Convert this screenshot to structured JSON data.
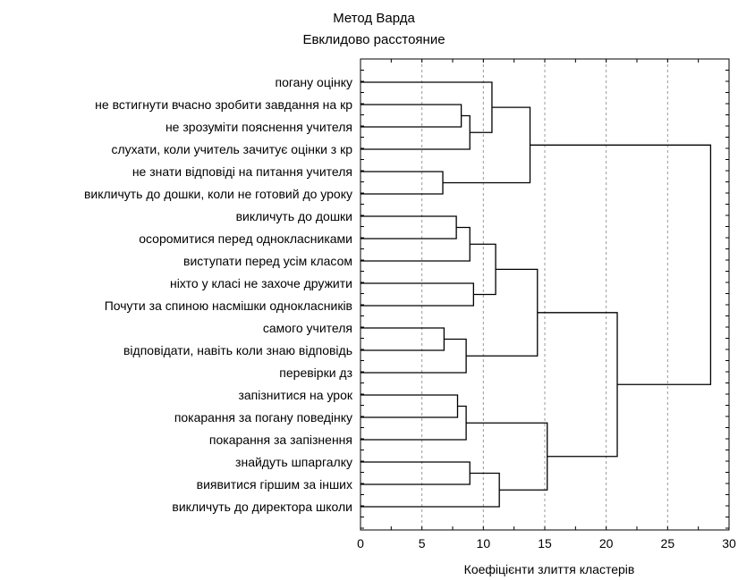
{
  "chart_data": {
    "type": "dendrogram",
    "title": "Метод Варда",
    "subtitle": "Евклидово расстояние",
    "xlabel": "Коефіцієнти злиття кластерів",
    "xlim": [
      0,
      30
    ],
    "xticks": [
      0,
      5,
      10,
      15,
      20,
      25,
      30
    ],
    "grid": "vertical",
    "leaves": [
      "погану оцінку",
      "не встигнути вчасно зробити завдання на кр",
      "не зрозуміти пояснення учителя",
      "слухати, коли учитель зачитує оцінки з кр",
      "не знати відповіді на питання учителя",
      "викличуть до дошки, коли не готовий до уроку",
      "викличуть до дошки",
      "осоромитися перед однокласниками",
      "виступати перед усім класом",
      "ніхто у класі не захоче дружити",
      "Почути за спиною насмішки однокласників",
      "самого учителя",
      "відповідати, навіть коли знаю відповідь",
      "перевірки дз",
      "запізнитися на урок",
      "покарання за погану поведінку",
      "покарання за запізнення",
      "знайдуть шпаргалку",
      "виявитися гіршим за інших",
      "викличуть до директора школи"
    ],
    "merges": [
      {
        "id": "A",
        "left": "L1",
        "right": "L2",
        "height": 8.2
      },
      {
        "id": "B",
        "left": "A",
        "right": "L3",
        "height": 8.9
      },
      {
        "id": "C",
        "left": "L0",
        "right": "B",
        "height": 10.7
      },
      {
        "id": "D",
        "left": "L4",
        "right": "L5",
        "height": 6.7
      },
      {
        "id": "E",
        "left": "C",
        "right": "D",
        "height": 13.8
      },
      {
        "id": "F",
        "left": "L6",
        "right": "L7",
        "height": 7.8
      },
      {
        "id": "G",
        "left": "F",
        "right": "L8",
        "height": 8.9
      },
      {
        "id": "H",
        "left": "L9",
        "right": "L10",
        "height": 9.2
      },
      {
        "id": "I",
        "left": "G",
        "right": "H",
        "height": 11.0
      },
      {
        "id": "J",
        "left": "L11",
        "right": "L12",
        "height": 6.8
      },
      {
        "id": "K",
        "left": "J",
        "right": "L13",
        "height": 8.6
      },
      {
        "id": "M",
        "left": "I",
        "right": "K",
        "height": 14.4
      },
      {
        "id": "N",
        "left": "L14",
        "right": "L15",
        "height": 7.9
      },
      {
        "id": "O",
        "left": "N",
        "right": "L16",
        "height": 8.6
      },
      {
        "id": "P",
        "left": "L17",
        "right": "L18",
        "height": 8.9
      },
      {
        "id": "Q",
        "left": "P",
        "right": "L19",
        "height": 11.3
      },
      {
        "id": "R",
        "left": "O",
        "right": "Q",
        "height": 15.2
      },
      {
        "id": "S",
        "left": "M",
        "right": "R",
        "height": 20.9
      },
      {
        "id": "T",
        "left": "E",
        "right": "S",
        "height": 28.5
      }
    ]
  }
}
